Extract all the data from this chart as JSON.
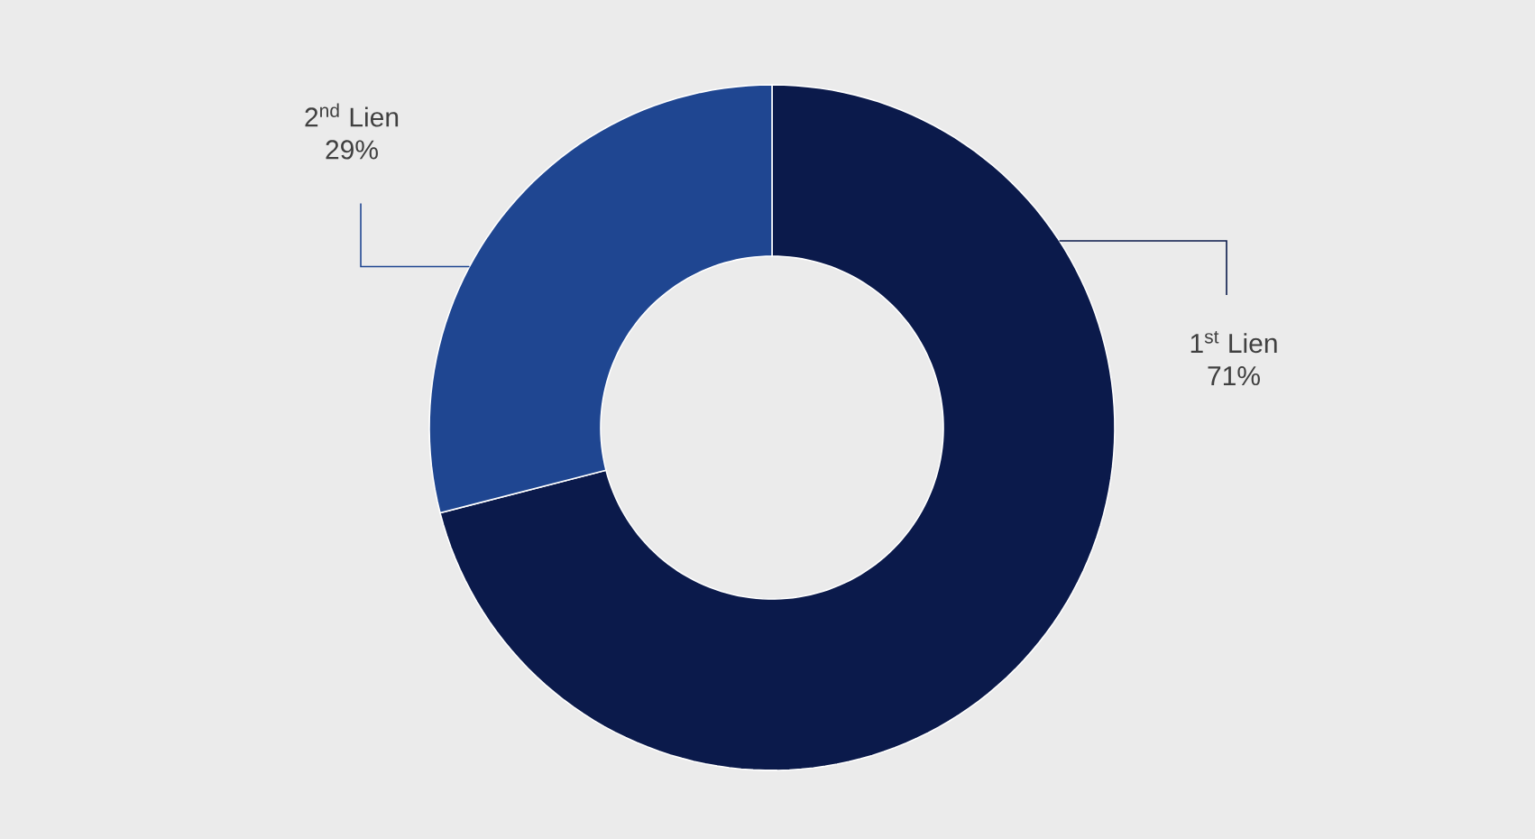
{
  "chart_data": {
    "type": "donut",
    "categories": [
      "1$^{st}$ Lien",
      "2$^{nd}$ Lien"
    ],
    "values": [
      71,
      29
    ],
    "colors": [
      "#0b1a4b",
      "#1f4691"
    ],
    "value_labels": [
      "71%",
      "29%"
    ]
  }
}
